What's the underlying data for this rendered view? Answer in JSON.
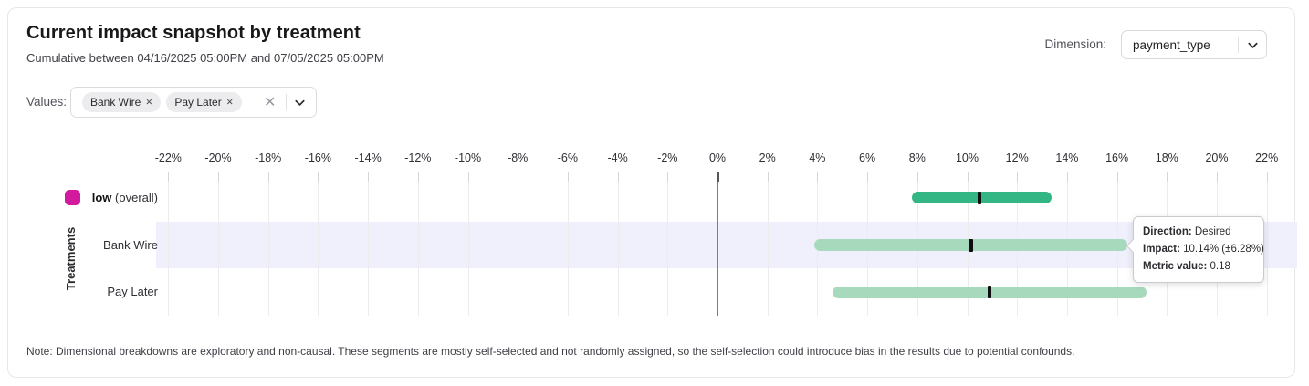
{
  "header": {
    "title": "Current impact snapshot by treatment",
    "subtitle": "Cumulative between 04/16/2025 05:00PM and 07/05/2025 05:00PM",
    "dimension_label": "Dimension:",
    "dimension_value": "payment_type"
  },
  "filters": {
    "values_label": "Values:",
    "chips": [
      {
        "label": "Bank Wire",
        "remove_glyph": "✕"
      },
      {
        "label": "Pay Later",
        "remove_glyph": "✕"
      }
    ],
    "clear_glyph": "✕"
  },
  "chart_data": {
    "type": "bar",
    "subtype": "horizontal-interval-with-midpoint",
    "ylabel": "Treatments",
    "axis": {
      "unit": "%",
      "tick_values": [
        -22,
        -20,
        -18,
        -16,
        -14,
        -12,
        -10,
        -8,
        -6,
        -4,
        -2,
        0,
        2,
        4,
        6,
        8,
        10,
        12,
        14,
        16,
        18,
        20,
        22
      ],
      "tick_labels": [
        "-22%",
        "-20%",
        "-18%",
        "-16%",
        "-14%",
        "-12%",
        "-10%",
        "-8%",
        "-6%",
        "-4%",
        "-2%",
        "0%",
        "2%",
        "4%",
        "6%",
        "8%",
        "10%",
        "12%",
        "14%",
        "16%",
        "18%",
        "20%",
        "22%"
      ],
      "zero_line": 0,
      "grid": true
    },
    "rows": [
      {
        "label": "low",
        "label_note": " (overall)",
        "center": 10.5,
        "low": 7.8,
        "high": 13.4,
        "bar_color": "#34b584",
        "legend_color": "#d11a9e",
        "highlighted": false
      },
      {
        "label": "Bank Wire",
        "label_note": "",
        "center": 10.14,
        "low": 3.86,
        "high": 16.42,
        "bar_color": "#a7dabd",
        "legend_color": null,
        "highlighted": true
      },
      {
        "label": "Pay Later",
        "label_note": "",
        "center": 10.9,
        "low": 4.6,
        "high": 17.2,
        "bar_color": "#a7dabd",
        "legend_color": null,
        "highlighted": false
      }
    ],
    "highlight_band_color": "#f0f0fc",
    "median_tick_color": "#0e0e10"
  },
  "tooltip": {
    "direction_label": "Direction:",
    "direction_value": " Desired",
    "impact_label": "Impact:",
    "impact_value": " 10.14% (±6.28%)",
    "metric_label": "Metric value:",
    "metric_value": " 0.18"
  },
  "note": "Note: Dimensional breakdowns are exploratory and non-causal. These segments are mostly self-selected and not randomly assigned, so the self-selection could introduce bias in the results due to potential confounds."
}
